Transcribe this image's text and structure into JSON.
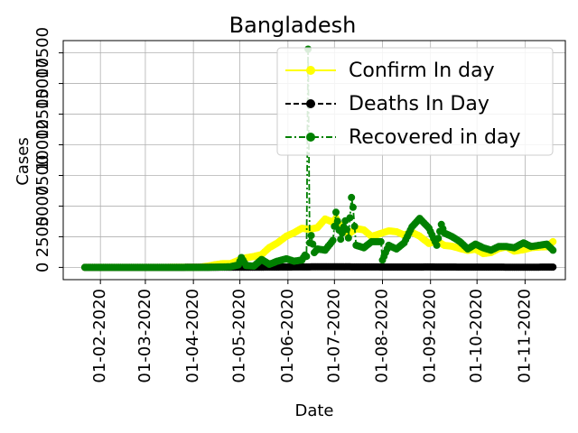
{
  "chart_data": {
    "type": "line",
    "title": "Bangladesh",
    "xlabel": "Date",
    "ylabel": "Cases",
    "x_ticks": [
      "01-02-2020",
      "01-03-2020",
      "01-04-2020",
      "01-05-2020",
      "01-06-2020",
      "01-07-2020",
      "01-08-2020",
      "01-09-2020",
      "01-10-2020",
      "01-11-2020"
    ],
    "y_ticks": [
      "0",
      "2500",
      "5000",
      "7500",
      "10000",
      "12500",
      "15000",
      "17500"
    ],
    "ylim": [
      -1000,
      18500
    ],
    "xlim": [
      "2020-01-08",
      "2020-11-27"
    ],
    "grid": true,
    "legend_position": "upper right",
    "series": [
      {
        "name": "Confirm In day",
        "color": "#ffff00",
        "line_style": "solid",
        "marker": "circle",
        "points": [
          [
            "2020-01-22",
            0
          ],
          [
            "2020-02-15",
            0
          ],
          [
            "2020-03-08",
            3
          ],
          [
            "2020-03-25",
            6
          ],
          [
            "2020-04-05",
            18
          ],
          [
            "2020-04-10",
            94
          ],
          [
            "2020-04-15",
            219
          ],
          [
            "2020-04-20",
            312
          ],
          [
            "2020-04-25",
            309
          ],
          [
            "2020-04-30",
            564
          ],
          [
            "2020-05-05",
            786
          ],
          [
            "2020-05-10",
            887
          ],
          [
            "2020-05-15",
            1041
          ],
          [
            "2020-05-20",
            1617
          ],
          [
            "2020-05-25",
            1975
          ],
          [
            "2020-05-31",
            2545
          ],
          [
            "2020-06-05",
            2828
          ],
          [
            "2020-06-10",
            3190
          ],
          [
            "2020-06-15",
            3099
          ],
          [
            "2020-06-20",
            3240
          ],
          [
            "2020-06-25",
            3946
          ],
          [
            "2020-06-30",
            3682
          ],
          [
            "2020-07-02",
            4019
          ],
          [
            "2020-07-05",
            3288
          ],
          [
            "2020-07-10",
            2709
          ],
          [
            "2020-07-15",
            3163
          ],
          [
            "2020-07-20",
            3057
          ],
          [
            "2020-07-25",
            2520
          ],
          [
            "2020-07-31",
            2772
          ],
          [
            "2020-08-05",
            2977
          ],
          [
            "2020-08-10",
            2907
          ],
          [
            "2020-08-15",
            2634
          ],
          [
            "2020-08-20",
            2868
          ],
          [
            "2020-08-25",
            2545
          ],
          [
            "2020-08-31",
            1950
          ],
          [
            "2020-09-05",
            2161
          ],
          [
            "2020-09-10",
            1792
          ],
          [
            "2020-09-15",
            1724
          ],
          [
            "2020-09-20",
            1544
          ],
          [
            "2020-09-25",
            1383
          ],
          [
            "2020-09-30",
            1488
          ],
          [
            "2020-10-05",
            1125
          ],
          [
            "2020-10-10",
            1208
          ],
          [
            "2020-10-15",
            1537
          ],
          [
            "2020-10-20",
            1673
          ],
          [
            "2020-10-25",
            1325
          ],
          [
            "2020-10-31",
            1443
          ],
          [
            "2020-11-05",
            1607
          ],
          [
            "2020-11-10",
            1660
          ],
          [
            "2020-11-15",
            1680
          ],
          [
            "2020-11-19",
            2100
          ]
        ]
      },
      {
        "name": "Deaths In Day",
        "color": "#000000",
        "line_style": "dashed",
        "marker": "circle",
        "points": [
          [
            "2020-01-22",
            0
          ],
          [
            "2020-03-18",
            1
          ],
          [
            "2020-04-10",
            10
          ],
          [
            "2020-05-01",
            15
          ],
          [
            "2020-05-20",
            20
          ],
          [
            "2020-06-10",
            40
          ],
          [
            "2020-07-01",
            45
          ],
          [
            "2020-07-20",
            38
          ],
          [
            "2020-08-10",
            30
          ],
          [
            "2020-09-01",
            35
          ],
          [
            "2020-09-20",
            25
          ],
          [
            "2020-10-10",
            20
          ],
          [
            "2020-10-31",
            18
          ],
          [
            "2020-11-19",
            20
          ]
        ]
      },
      {
        "name": "Recovered in day",
        "color": "#008000",
        "line_style": "dashdot",
        "marker": "circle",
        "points": [
          [
            "2020-01-22",
            0
          ],
          [
            "2020-03-20",
            0
          ],
          [
            "2020-04-10",
            0
          ],
          [
            "2020-04-25",
            50
          ],
          [
            "2020-04-30",
            200
          ],
          [
            "2020-05-02",
            800
          ],
          [
            "2020-05-05",
            150
          ],
          [
            "2020-05-10",
            100
          ],
          [
            "2020-05-15",
            650
          ],
          [
            "2020-05-20",
            250
          ],
          [
            "2020-05-25",
            500
          ],
          [
            "2020-05-31",
            700
          ],
          [
            "2020-06-05",
            500
          ],
          [
            "2020-06-10",
            600
          ],
          [
            "2020-06-12",
            1000
          ],
          [
            "2020-06-13",
            900
          ],
          [
            "2020-06-14",
            17800
          ],
          [
            "2020-06-15",
            2000
          ],
          [
            "2020-06-16",
            2600
          ],
          [
            "2020-06-18",
            1200
          ],
          [
            "2020-06-20",
            1500
          ],
          [
            "2020-06-25",
            1400
          ],
          [
            "2020-06-30",
            2200
          ],
          [
            "2020-07-02",
            4500
          ],
          [
            "2020-07-05",
            2300
          ],
          [
            "2020-07-08",
            3800
          ],
          [
            "2020-07-10",
            2400
          ],
          [
            "2020-07-12",
            5700
          ],
          [
            "2020-07-13",
            4900
          ],
          [
            "2020-07-15",
            1800
          ],
          [
            "2020-07-20",
            1600
          ],
          [
            "2020-07-25",
            2100
          ],
          [
            "2020-07-31",
            2100
          ],
          [
            "2020-08-01",
            600
          ],
          [
            "2020-08-05",
            1800
          ],
          [
            "2020-08-10",
            1500
          ],
          [
            "2020-08-15",
            2000
          ],
          [
            "2020-08-20",
            3300
          ],
          [
            "2020-08-25",
            4000
          ],
          [
            "2020-08-31",
            3200
          ],
          [
            "2020-09-05",
            1800
          ],
          [
            "2020-09-08",
            3500
          ],
          [
            "2020-09-10",
            2800
          ],
          [
            "2020-09-15",
            2500
          ],
          [
            "2020-09-20",
            2100
          ],
          [
            "2020-09-25",
            1500
          ],
          [
            "2020-09-30",
            1900
          ],
          [
            "2020-10-05",
            1600
          ],
          [
            "2020-10-10",
            1400
          ],
          [
            "2020-10-15",
            1700
          ],
          [
            "2020-10-20",
            1700
          ],
          [
            "2020-10-25",
            1600
          ],
          [
            "2020-10-31",
            2000
          ],
          [
            "2020-11-05",
            1700
          ],
          [
            "2020-11-10",
            1800
          ],
          [
            "2020-11-15",
            1900
          ],
          [
            "2020-11-19",
            1400
          ]
        ]
      }
    ]
  }
}
